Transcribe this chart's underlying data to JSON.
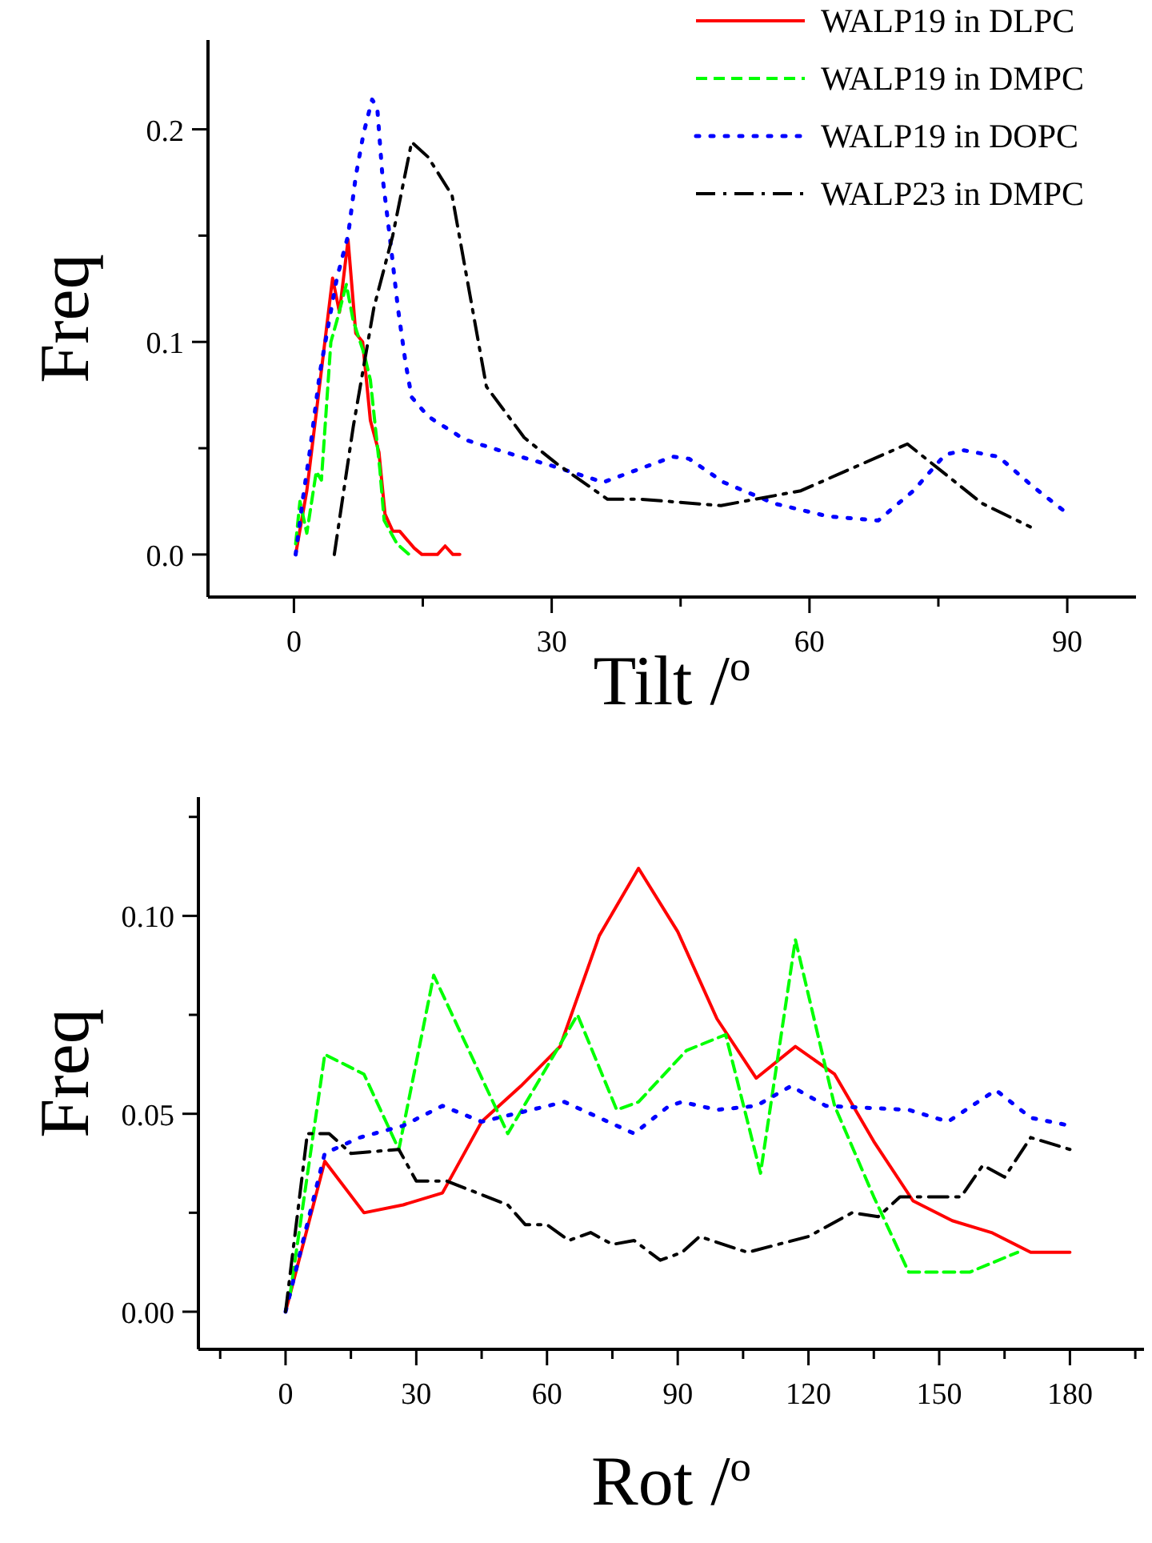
{
  "chart_data": [
    {
      "type": "line",
      "xlabel": "Tilt /$^{o}$",
      "ylabel": "Freq",
      "xlim": [
        -10,
        98
      ],
      "ylim": [
        -0.02,
        0.242
      ],
      "xticks": [
        0,
        {
          "value": 15,
          "label": null
        },
        30,
        {
          "value": 45,
          "label": null
        },
        60,
        {
          "value": 75,
          "label": null
        },
        90
      ],
      "yticks": [
        {
          "value": 0,
          "label": "0.0"
        },
        {
          "value": 0.05,
          "label": null
        },
        0.1,
        {
          "value": 0.15,
          "label": null
        },
        0.2
      ],
      "legend": "top right",
      "grid": false,
      "marker": "none",
      "series": [
        {
          "name": "WALP19 in DLPC",
          "color": "#ff0000",
          "line_style": "solid",
          "x": [
            0.2,
            1.5,
            3,
            4.5,
            5.3,
            6.3,
            7.2,
            8,
            8.9,
            9.9,
            10.6,
            11.5,
            12.3,
            14,
            14.9,
            16.7,
            17.6,
            18.5,
            19.3
          ],
          "values": [
            0,
            0.03,
            0.08,
            0.13,
            0.114,
            0.148,
            0.104,
            0.1,
            0.063,
            0.048,
            0.019,
            0.011,
            0.011,
            0.003,
            0,
            0,
            0.004,
            0,
            0
          ]
        },
        {
          "name": "WALP19 in DMPC",
          "color": "#00ff00",
          "line_style": "dashed",
          "x": [
            0.2,
            0.7,
            1.5,
            2.6,
            3.2,
            4.3,
            5,
            6.1,
            6.9,
            8.2,
            8.9,
            10,
            10.5,
            12,
            13.4
          ],
          "values": [
            0.005,
            0.025,
            0.01,
            0.039,
            0.035,
            0.1,
            0.11,
            0.127,
            0.11,
            0.094,
            0.082,
            0.04,
            0.016,
            0.005,
            0
          ]
        },
        {
          "name": "WALP19 in DOPC",
          "color": "#0000ff",
          "line_style": "dotted",
          "x": [
            0.2,
            1,
            1.9,
            3,
            4.1,
            5,
            6.3,
            7.2,
            8.1,
            9.1,
            9.7,
            10.3,
            11.2,
            12.1,
            13,
            13.7,
            15.6,
            19.9,
            25.5,
            29.8,
            36,
            44.1,
            46,
            50,
            55.9,
            62.1,
            68,
            72.1,
            75.8,
            78,
            82,
            86,
            90.1
          ],
          "values": [
            0,
            0.025,
            0.05,
            0.085,
            0.11,
            0.13,
            0.15,
            0.178,
            0.198,
            0.214,
            0.21,
            0.178,
            0.148,
            0.116,
            0.09,
            0.074,
            0.065,
            0.054,
            0.047,
            0.042,
            0.034,
            0.046,
            0.045,
            0.034,
            0.024,
            0.018,
            0.016,
            0.03,
            0.047,
            0.049,
            0.046,
            0.032,
            0.019
          ]
        },
        {
          "name": "WALP23 in DMPC",
          "color": "#000000",
          "line_style": "dashdot",
          "x": [
            4.7,
            6.9,
            9.3,
            11.5,
            13.7,
            15.6,
            18.4,
            22.4,
            26.8,
            30.5,
            36.5,
            40.4,
            49.7,
            59,
            71.4,
            80.1,
            85.7
          ],
          "values": [
            0,
            0.06,
            0.116,
            0.15,
            0.194,
            0.187,
            0.169,
            0.079,
            0.055,
            0.043,
            0.026,
            0.026,
            0.023,
            0.03,
            0.052,
            0.024,
            0.013
          ]
        }
      ]
    },
    {
      "type": "line",
      "xlabel": "Rot /$^{o}$",
      "ylabel": "Freq",
      "xlim": [
        -20,
        197
      ],
      "ylim": [
        -0.0095,
        0.13
      ],
      "xticks": [
        {
          "value": -15,
          "label": null
        },
        0,
        {
          "value": 15,
          "label": null
        },
        30,
        {
          "value": 45,
          "label": null
        },
        60,
        {
          "value": 75,
          "label": null
        },
        90,
        {
          "value": 105,
          "label": null
        },
        120,
        {
          "value": 135,
          "label": null
        },
        150,
        {
          "value": 165,
          "label": null
        },
        180,
        {
          "value": 195,
          "label": null
        }
      ],
      "yticks": [
        {
          "value": 0,
          "label": "0.00"
        },
        {
          "value": 0.025,
          "label": null
        },
        0.05,
        {
          "value": 0.075,
          "label": null
        },
        {
          "value": 0.1,
          "label": "0.10"
        },
        {
          "value": 0.125,
          "label": null
        }
      ],
      "legend": false,
      "grid": false,
      "marker": "none",
      "series": [
        {
          "color": "#ff0000",
          "line_style": "solid",
          "x": [
            0,
            9,
            18,
            27,
            36,
            45,
            54,
            63,
            72,
            81,
            90,
            99,
            108,
            117,
            126,
            135,
            144,
            153,
            162,
            171,
            180
          ],
          "values": [
            0,
            0.038,
            0.025,
            0.027,
            0.03,
            0.048,
            0.057,
            0.067,
            0.095,
            0.112,
            0.096,
            0.074,
            0.059,
            0.067,
            0.06,
            0.043,
            0.028,
            0.023,
            0.02,
            0.015,
            0.015
          ]
        },
        {
          "color": "#00ff00",
          "line_style": "dashed",
          "x": [
            1,
            9,
            18,
            26,
            34,
            51,
            67,
            76,
            81,
            92,
            101,
            109,
            117,
            126,
            135,
            143,
            157,
            168
          ],
          "values": [
            0.004,
            0.065,
            0.06,
            0.041,
            0.085,
            0.045,
            0.075,
            0.051,
            0.053,
            0.066,
            0.07,
            0.035,
            0.094,
            0.052,
            0.029,
            0.01,
            0.01,
            0.015
          ]
        },
        {
          "color": "#0000ff",
          "line_style": "dotted",
          "x": [
            0,
            9,
            17,
            27,
            36,
            45,
            64,
            72,
            80,
            88,
            91,
            99,
            108,
            116,
            124,
            143,
            152,
            163,
            171,
            180
          ],
          "values": [
            0,
            0.04,
            0.044,
            0.047,
            0.052,
            0.048,
            0.053,
            0.049,
            0.045,
            0.052,
            0.053,
            0.051,
            0.052,
            0.057,
            0.052,
            0.051,
            0.048,
            0.056,
            0.049,
            0.047
          ]
        },
        {
          "color": "#000000",
          "line_style": "dashdot",
          "x": [
            0,
            5,
            10,
            15,
            26,
            30,
            37,
            51,
            55,
            60,
            65,
            70,
            75,
            80,
            86,
            91,
            95,
            106,
            120,
            130,
            136,
            141,
            155,
            160,
            165,
            171,
            180
          ],
          "values": [
            0,
            0.045,
            0.045,
            0.04,
            0.041,
            0.033,
            0.033,
            0.027,
            0.022,
            0.022,
            0.018,
            0.02,
            0.017,
            0.018,
            0.013,
            0.015,
            0.019,
            0.015,
            0.019,
            0.025,
            0.024,
            0.029,
            0.029,
            0.037,
            0.034,
            0.044,
            0.041
          ]
        }
      ]
    }
  ]
}
